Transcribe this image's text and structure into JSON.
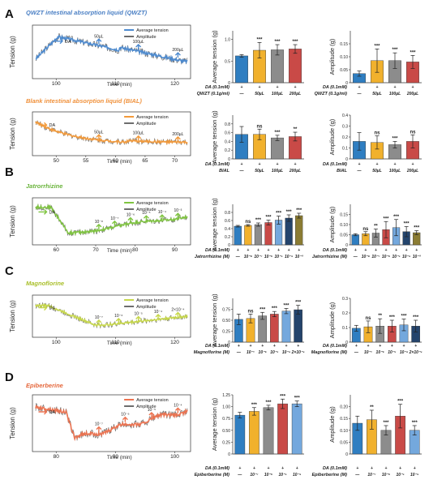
{
  "colors": {
    "blue": "#2f7ec1",
    "yellow": "#f1b12d",
    "gray": "#8c8c8c",
    "red": "#c94a47",
    "lightblue": "#74a8dd",
    "navy": "#24446c",
    "olive": "#8b7c33",
    "trace_blue": "#4c8ad0",
    "trace_orange": "#f39a3a",
    "trace_green": "#7fc540",
    "trace_lime": "#c7d84a",
    "trace_red": "#ed7350",
    "title_blue": "#4a7fc4",
    "title_orange": "#f0913b",
    "title_green": "#6ab43c",
    "title_lime": "#a9bf2a",
    "title_red": "#e5683d"
  },
  "panels": [
    {
      "letter": "A",
      "rows": [
        {
          "title": "QWZT intestinal absorption liquid (QWZT)",
          "title_color_key": "title_blue",
          "trace": {
            "color_key": "trace_blue",
            "ylabel": "Tension (g)",
            "xlabel": "Time (min)",
            "xticks": [
              "100",
              "110",
              "120"
            ],
            "legend": [
              "Average tension",
              "Amplitude"
            ],
            "annotations": [
              "DA",
              "50µL",
              "100µL",
              "200µL"
            ]
          },
          "bar_charts": [
            {
              "ylabel": "Average tension (g)",
              "ylim": [
                0,
                1.2
              ],
              "yticks": [
                "0",
                "0.5",
                "1.0"
              ],
              "values": [
                0.62,
                0.75,
                0.76,
                0.78
              ],
              "errors": [
                0.03,
                0.18,
                0.12,
                0.1
              ],
              "sig": [
                "",
                "***",
                "***",
                "***"
              ],
              "colors": [
                "blue",
                "yellow",
                "gray",
                "red"
              ],
              "row_labels": [
                "DA (0.1mM)",
                "QWZT (0.1g/ml)"
              ],
              "row_values": [
                [
                  "+",
                  "+",
                  "+",
                  "+"
                ],
                [
                  "—",
                  "50µL",
                  "100µL",
                  "200µL"
                ]
              ]
            },
            {
              "ylabel": "Amplitude (g)",
              "ylim": [
                0,
                0.2
              ],
              "yticks": [
                "0",
                "0.05",
                "0.10",
                "0.15"
              ],
              "values": [
                0.035,
                0.085,
                0.085,
                0.08
              ],
              "errors": [
                0.01,
                0.045,
                0.03,
                0.025
              ],
              "sig": [
                "",
                "***",
                "***",
                "***"
              ],
              "colors": [
                "blue",
                "yellow",
                "gray",
                "red"
              ],
              "row_labels": [
                "DA (0.1mM)",
                "QWZT (0.1g/ml)"
              ],
              "row_values": [
                [
                  "+",
                  "+",
                  "+",
                  "+"
                ],
                [
                  "—",
                  "50µL",
                  "100µL",
                  "200µL"
                ]
              ]
            }
          ]
        },
        {
          "title": "Blank intestinal absorption liquid (BIAL)",
          "title_color_key": "title_orange",
          "trace": {
            "color_key": "trace_orange",
            "ylabel": "Tension (g)",
            "xlabel": "Time (min)",
            "xticks": [
              "50",
              "55",
              "60",
              "65",
              "70"
            ],
            "legend": [
              "Average tension",
              "Amplitude"
            ],
            "annotations": [
              "DA",
              "50µL",
              "100µL",
              "200µL"
            ]
          },
          "bar_charts": [
            {
              "ylabel": "Average tension (g)",
              "ylim": [
                0,
                1.0
              ],
              "yticks": [
                "0",
                "0.2",
                "0.4",
                "0.6",
                "0.8"
              ],
              "values": [
                0.56,
                0.56,
                0.48,
                0.51
              ],
              "errors": [
                0.18,
                0.12,
                0.06,
                0.1
              ],
              "sig": [
                "",
                "ns",
                "***",
                "**"
              ],
              "colors": [
                "blue",
                "yellow",
                "gray",
                "red"
              ],
              "row_labels": [
                "DA (0.1mM)",
                "BIAL"
              ],
              "row_values": [
                [
                  "+",
                  "+",
                  "+",
                  "+"
                ],
                [
                  "—",
                  "50µL",
                  "100µL",
                  "200µL"
                ]
              ]
            },
            {
              "ylabel": "Amplitude (g)",
              "ylim": [
                0,
                0.4
              ],
              "yticks": [
                "0",
                "0.1",
                "0.2",
                "0.3",
                "0.4"
              ],
              "values": [
                0.16,
                0.15,
                0.13,
                0.16
              ],
              "errors": [
                0.08,
                0.06,
                0.03,
                0.06
              ],
              "sig": [
                "",
                "ns",
                "***",
                "ns"
              ],
              "colors": [
                "blue",
                "yellow",
                "gray",
                "red"
              ],
              "row_labels": [
                "DA (0.1mM)",
                "BIAL"
              ],
              "row_values": [
                [
                  "+",
                  "+",
                  "+",
                  "+"
                ],
                [
                  "—",
                  "50µL",
                  "100µL",
                  "200µL"
                ]
              ]
            }
          ]
        }
      ]
    },
    {
      "letter": "B",
      "rows": [
        {
          "title": "Jatrorrhizine",
          "title_color_key": "title_green",
          "trace": {
            "color_key": "trace_green",
            "ylabel": "Tension (g)",
            "xlabel": "Time (min)",
            "xticks": [
              "60",
              "70",
              "80",
              "90"
            ],
            "legend": [
              "Average tension",
              "Amplitude"
            ],
            "annotations": [
              "DA",
              "10⁻⁸",
              "10⁻⁷",
              "10⁻⁶",
              "10⁻⁵",
              "10⁻⁴",
              "10⁻³"
            ]
          },
          "bar_charts": [
            {
              "ylabel": "Average tension (g)",
              "ylim": [
                0,
                1.0
              ],
              "yticks": [
                "0",
                "0.2",
                "0.4",
                "0.6",
                "0.8"
              ],
              "values": [
                0.46,
                0.48,
                0.5,
                0.55,
                0.61,
                0.66,
                0.72
              ],
              "errors": [
                0.02,
                0.02,
                0.04,
                0.06,
                0.1,
                0.08,
                0.06
              ],
              "sig": [
                "",
                "ns",
                "***",
                "***",
                "***",
                "***",
                "***"
              ],
              "colors": [
                "blue",
                "yellow",
                "gray",
                "red",
                "lightblue",
                "navy",
                "olive"
              ],
              "row_labels": [
                "DA (0.1mM)",
                "Jatrorrhizine (M)"
              ],
              "row_values": [
                [
                  "+",
                  "+",
                  "+",
                  "+",
                  "+",
                  "+",
                  "+"
                ],
                [
                  "—",
                  "10⁻⁸",
                  "10⁻⁷",
                  "10⁻⁶",
                  "10⁻⁵",
                  "10⁻⁴",
                  "10⁻³"
                ]
              ]
            },
            {
              "ylabel": "Amplitude (g)",
              "ylim": [
                0,
                0.2
              ],
              "yticks": [
                "0",
                "0.05",
                "0.10",
                "0.15"
              ],
              "values": [
                0.05,
                0.055,
                0.058,
                0.075,
                0.085,
                0.065,
                0.06
              ],
              "errors": [
                0.005,
                0.01,
                0.02,
                0.04,
                0.04,
                0.025,
                0.01
              ],
              "sig": [
                "",
                "ns",
                "**",
                "***",
                "***",
                "***",
                "***"
              ],
              "colors": [
                "blue",
                "yellow",
                "gray",
                "red",
                "lightblue",
                "navy",
                "olive"
              ],
              "row_labels": [
                "DA (0.1mM)",
                "Jatrorrhizine (M)"
              ],
              "row_values": [
                [
                  "+",
                  "+",
                  "+",
                  "+",
                  "+",
                  "+",
                  "+"
                ],
                [
                  "—",
                  "10⁻⁸",
                  "10⁻⁷",
                  "10⁻⁶",
                  "10⁻⁵",
                  "10⁻⁴",
                  "10⁻³"
                ]
              ]
            }
          ]
        }
      ]
    },
    {
      "letter": "C",
      "rows": [
        {
          "title": "Magnoflorine",
          "title_color_key": "title_lime",
          "trace": {
            "color_key": "trace_lime",
            "ylabel": "Tension (g)",
            "xlabel": "Time (min)",
            "xticks": [
              "100",
              "110",
              "120"
            ],
            "legend": [
              "Average tension",
              "Amplitude"
            ],
            "annotations": [
              "DA",
              "10⁻⁷",
              "10⁻⁶",
              "10⁻⁵",
              "10⁻⁴",
              "2×10⁻⁴"
            ]
          },
          "bar_charts": [
            {
              "ylabel": "Average tension (g)",
              "ylim": [
                0,
                1.0
              ],
              "yticks": [
                "0",
                "0.25",
                "0.50",
                "0.75"
              ],
              "values": [
                0.52,
                0.54,
                0.6,
                0.64,
                0.71,
                0.74
              ],
              "errors": [
                0.12,
                0.1,
                0.08,
                0.06,
                0.06,
                0.1
              ],
              "sig": [
                "",
                "ns",
                "***",
                "***",
                "***",
                "***"
              ],
              "colors": [
                "blue",
                "yellow",
                "gray",
                "red",
                "lightblue",
                "navy"
              ],
              "row_labels": [
                "DA (0.1mM)",
                "Magnoflorine (M)"
              ],
              "row_values": [
                [
                  "+",
                  "+",
                  "+",
                  "+",
                  "+",
                  "+"
                ],
                [
                  "—",
                  "10⁻⁷",
                  "10⁻⁶",
                  "10⁻⁵",
                  "10⁻⁴",
                  "2×10⁻⁴"
                ]
              ]
            },
            {
              "ylabel": "Amplitude (g)",
              "ylim": [
                0,
                0.3
              ],
              "yticks": [
                "0",
                "0.1",
                "0.2",
                "0.3"
              ],
              "values": [
                0.095,
                0.105,
                0.11,
                0.11,
                0.118,
                0.11
              ],
              "errors": [
                0.02,
                0.04,
                0.05,
                0.04,
                0.04,
                0.04
              ],
              "sig": [
                "",
                "ns",
                "**",
                "***",
                "***",
                "***"
              ],
              "colors": [
                "blue",
                "yellow",
                "gray",
                "red",
                "lightblue",
                "navy"
              ],
              "row_labels": [
                "DA (0.1mM)",
                "Magnoflorine (M)"
              ],
              "row_values": [
                [
                  "+",
                  "+",
                  "+",
                  "+",
                  "+",
                  "+"
                ],
                [
                  "—",
                  "10⁻⁷",
                  "10⁻⁶",
                  "10⁻⁵",
                  "10⁻⁴",
                  "2×10⁻⁴"
                ]
              ]
            }
          ]
        }
      ]
    },
    {
      "letter": "D",
      "rows": [
        {
          "title": "Epiberberine",
          "title_color_key": "title_red",
          "trace": {
            "color_key": "trace_red",
            "ylabel": "Tension (g)",
            "xlabel": "Time (min)",
            "xticks": [
              "80",
              "90",
              "100"
            ],
            "legend": [
              "Average tension",
              "Amplitude"
            ],
            "annotations": [
              "DA",
              "10⁻⁷",
              "10⁻⁶",
              "10⁻⁵",
              "10⁻⁴"
            ]
          },
          "bar_charts": [
            {
              "ylabel": "Average tension (g)",
              "ylim": [
                0,
                1.25
              ],
              "yticks": [
                "0",
                "0.25",
                "0.50",
                "0.75",
                "1.00",
                "1.25"
              ],
              "values": [
                0.82,
                0.9,
                0.98,
                1.06,
                1.06
              ],
              "errors": [
                0.06,
                0.08,
                0.05,
                0.1,
                0.06
              ],
              "sig": [
                "",
                "***",
                "***",
                "***",
                "***"
              ],
              "colors": [
                "blue",
                "yellow",
                "gray",
                "red",
                "lightblue"
              ],
              "row_labels": [
                "DA (0.1mM)",
                "Epiberberine (M)"
              ],
              "row_values": [
                [
                  "+",
                  "+",
                  "+",
                  "+",
                  "+"
                ],
                [
                  "—",
                  "10⁻⁷",
                  "10⁻⁶",
                  "10⁻⁵",
                  "10⁻⁴"
                ]
              ]
            },
            {
              "ylabel": "Amplitude (g)",
              "ylim": [
                0,
                0.25
              ],
              "yticks": [
                "0",
                "0.05",
                "0.10",
                "0.15",
                "0.20"
              ],
              "values": [
                0.13,
                0.145,
                0.1,
                0.16,
                0.1
              ],
              "errors": [
                0.03,
                0.04,
                0.02,
                0.05,
                0.02
              ],
              "sig": [
                "",
                "**",
                "***",
                "***",
                "***"
              ],
              "colors": [
                "blue",
                "yellow",
                "gray",
                "red",
                "lightblue"
              ],
              "row_labels": [
                "DA (0.1mM)",
                "Epiberberine (M)"
              ],
              "row_values": [
                [
                  "+",
                  "+",
                  "+",
                  "+",
                  "+"
                ],
                [
                  "—",
                  "10⁻⁷",
                  "10⁻⁶",
                  "10⁻⁵",
                  "10⁻⁴"
                ]
              ]
            }
          ]
        }
      ]
    }
  ]
}
